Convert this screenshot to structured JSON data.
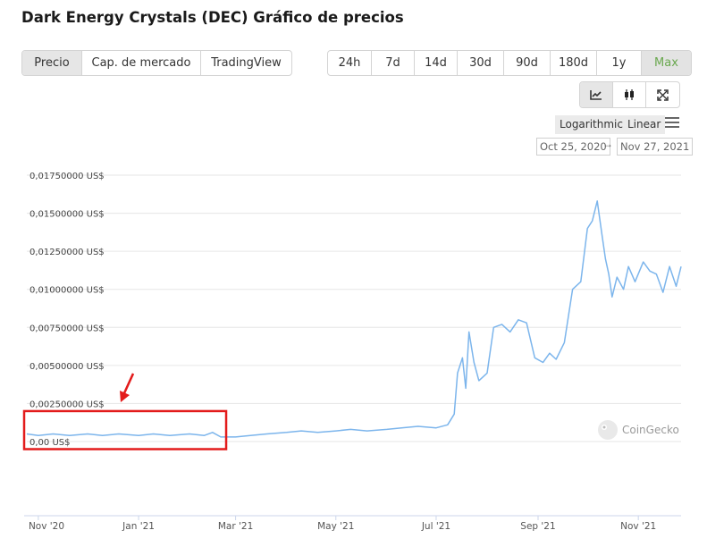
{
  "title": "Dark Energy Crystals (DEC) Gráfico de precios",
  "view_tabs": [
    {
      "label": "Precio",
      "active": true
    },
    {
      "label": "Cap. de mercado",
      "active": false
    },
    {
      "label": "TradingView",
      "active": false
    }
  ],
  "range_tabs": [
    {
      "label": "24h",
      "active": false
    },
    {
      "label": "7d",
      "active": false
    },
    {
      "label": "14d",
      "active": false
    },
    {
      "label": "30d",
      "active": false
    },
    {
      "label": "90d",
      "active": false
    },
    {
      "label": "180d",
      "active": false
    },
    {
      "label": "1y",
      "active": false
    },
    {
      "label": "Max",
      "active": true
    }
  ],
  "tools": [
    {
      "icon": "line-chart-icon",
      "active": true
    },
    {
      "icon": "candlestick-icon",
      "active": false
    },
    {
      "icon": "fullscreen-icon",
      "active": false
    }
  ],
  "scale": {
    "logarithmic": "Logarithmic",
    "linear": "Linear",
    "menu_icon": "hamburger-menu-icon"
  },
  "date_range": {
    "from": "Oct 25, 2020",
    "to": "Nov 27, 2021",
    "arrow": "→"
  },
  "watermark": "CoinGecko",
  "colors": {
    "line": "#7cb5ec",
    "highlight_box": "#e31b1b",
    "active_green": "#6aa84f"
  },
  "chart_data": {
    "type": "line",
    "x_range": [
      "2020-10-25",
      "2021-11-27"
    ],
    "ylim": [
      0,
      0.0175
    ],
    "y_ticks": [
      0,
      0.0025,
      0.005,
      0.0075,
      0.01,
      0.0125,
      0.015,
      0.0175
    ],
    "y_tick_labels": [
      "0,00 US$",
      "0,00250000 US$",
      "0,00500000 US$",
      "0,00750000 US$",
      "0,01000000 US$",
      "0,01250000 US$",
      "0,01500000 US$",
      "0,01750000 US$"
    ],
    "x_tick_labels": [
      {
        "date": "2020-11-01",
        "label": "Nov '20"
      },
      {
        "date": "2021-01-01",
        "label": "Jan '21"
      },
      {
        "date": "2021-03-01",
        "label": "Mar '21"
      },
      {
        "date": "2021-05-01",
        "label": "May '21"
      },
      {
        "date": "2021-07-01",
        "label": "Jul '21"
      },
      {
        "date": "2021-09-01",
        "label": "Sep '21"
      },
      {
        "date": "2021-11-01",
        "label": "Nov '21"
      }
    ],
    "series": [
      {
        "x": [
          "2020-10-25",
          "2020-11-01",
          "2020-11-10",
          "2020-11-20",
          "2020-12-01",
          "2020-12-10",
          "2020-12-20",
          "2021-01-01",
          "2021-01-10",
          "2021-01-20",
          "2021-02-01",
          "2021-02-10",
          "2021-02-15",
          "2021-02-20",
          "2021-03-01",
          "2021-03-10",
          "2021-03-20",
          "2021-04-01",
          "2021-04-10",
          "2021-04-20",
          "2021-05-01",
          "2021-05-10",
          "2021-05-20",
          "2021-06-01",
          "2021-06-10",
          "2021-06-20",
          "2021-07-01",
          "2021-07-08",
          "2021-07-12",
          "2021-07-14",
          "2021-07-17",
          "2021-07-19",
          "2021-07-21",
          "2021-07-24",
          "2021-07-27",
          "2021-08-01",
          "2021-08-05",
          "2021-08-10",
          "2021-08-15",
          "2021-08-20",
          "2021-08-25",
          "2021-08-30",
          "2021-09-04",
          "2021-09-08",
          "2021-09-12",
          "2021-09-17",
          "2021-09-22",
          "2021-09-27",
          "2021-10-01",
          "2021-10-04",
          "2021-10-07",
          "2021-10-10",
          "2021-10-12",
          "2021-10-14",
          "2021-10-16",
          "2021-10-19",
          "2021-10-23",
          "2021-10-26",
          "2021-10-30",
          "2021-11-04",
          "2021-11-08",
          "2021-11-12",
          "2021-11-16",
          "2021-11-20",
          "2021-11-24",
          "2021-11-27"
        ],
        "y": [
          0.0005,
          0.0004,
          0.0005,
          0.0004,
          0.0005,
          0.0004,
          0.0005,
          0.0004,
          0.0005,
          0.0004,
          0.0005,
          0.0004,
          0.0006,
          0.0003,
          0.0003,
          0.0004,
          0.0005,
          0.0006,
          0.0007,
          0.0006,
          0.0007,
          0.0008,
          0.0007,
          0.0008,
          0.0009,
          0.001,
          0.0009,
          0.0011,
          0.0018,
          0.0045,
          0.0055,
          0.0035,
          0.0072,
          0.0052,
          0.004,
          0.0045,
          0.0075,
          0.0077,
          0.0072,
          0.008,
          0.0078,
          0.0055,
          0.0052,
          0.0058,
          0.0054,
          0.0065,
          0.01,
          0.0105,
          0.014,
          0.0145,
          0.0158,
          0.0135,
          0.012,
          0.011,
          0.0095,
          0.0108,
          0.01,
          0.0115,
          0.0105,
          0.0118,
          0.0112,
          0.011,
          0.0098,
          0.0115,
          0.0102,
          0.0115
        ]
      }
    ],
    "annotation": {
      "type": "highlight-box-with-arrow",
      "x_range": [
        "2020-10-25",
        "2021-02-20"
      ],
      "y_range": [
        -0.0005,
        0.002
      ]
    }
  }
}
